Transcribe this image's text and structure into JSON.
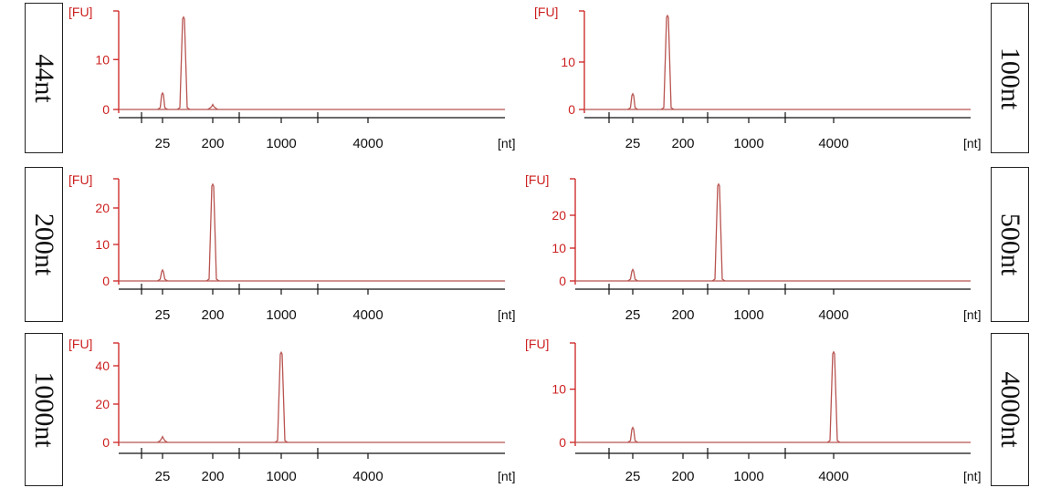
{
  "colors": {
    "trace": "#b85450",
    "axis": "#cc1f1f",
    "xaxis": "#111111"
  },
  "chart_data": [
    {
      "type": "line",
      "sample_label": "44nt",
      "ylabel": "[FU]",
      "xlabel": "[nt]",
      "y_ticks": [
        0,
        10
      ],
      "ylim": [
        0,
        19
      ],
      "x_tick_labels": [
        "25",
        "200",
        "1000",
        "4000"
      ],
      "x_ticks_unlabeled": 3,
      "peaks": [
        {
          "at": "25",
          "height": 3.3
        },
        {
          "at": "44",
          "height": 18.5
        },
        {
          "at": "200",
          "height": 1.0
        }
      ]
    },
    {
      "type": "line",
      "sample_label": "100nt",
      "ylabel": "[FU]",
      "xlabel": "[nt]",
      "y_ticks": [
        0,
        10
      ],
      "ylim": [
        0,
        20
      ],
      "x_tick_labels": [
        "25",
        "200",
        "1000",
        "4000"
      ],
      "x_ticks_unlabeled": 3,
      "peaks": [
        {
          "at": "25",
          "height": 3.3
        },
        {
          "at": "100",
          "height": 19.8
        }
      ]
    },
    {
      "type": "line",
      "sample_label": "200nt",
      "ylabel": "[FU]",
      "xlabel": "[nt]",
      "y_ticks": [
        0,
        10,
        20
      ],
      "ylim": [
        0,
        27
      ],
      "x_tick_labels": [
        "25",
        "200",
        "1000",
        "4000"
      ],
      "x_ticks_unlabeled": 3,
      "peaks": [
        {
          "at": "25",
          "height": 3.0
        },
        {
          "at": "200",
          "height": 26.5
        }
      ]
    },
    {
      "type": "line",
      "sample_label": "500nt",
      "ylabel": "[FU]",
      "xlabel": "[nt]",
      "y_ticks": [
        0,
        10,
        20
      ],
      "ylim": [
        0,
        30
      ],
      "x_tick_labels": [
        "25",
        "200",
        "1000",
        "4000"
      ],
      "x_ticks_unlabeled": 3,
      "peaks": [
        {
          "at": "25",
          "height": 3.5
        },
        {
          "at": "500",
          "height": 29.5
        }
      ]
    },
    {
      "type": "line",
      "sample_label": "1000nt",
      "ylabel": "[FU]",
      "xlabel": "[nt]",
      "y_ticks": [
        0,
        20,
        40
      ],
      "ylim": [
        0,
        50
      ],
      "x_tick_labels": [
        "25",
        "200",
        "1000",
        "4000"
      ],
      "x_ticks_unlabeled": 3,
      "peaks": [
        {
          "at": "25",
          "height": 3.0
        },
        {
          "at": "1000",
          "height": 47
        }
      ]
    },
    {
      "type": "line",
      "sample_label": "4000nt",
      "ylabel": "[FU]",
      "xlabel": "[nt]",
      "y_ticks": [
        0,
        10
      ],
      "ylim": [
        0,
        18
      ],
      "x_tick_labels": [
        "25",
        "200",
        "1000",
        "4000"
      ],
      "x_ticks_unlabeled": 3,
      "peaks": [
        {
          "at": "25",
          "height": 2.8
        },
        {
          "at": "4000",
          "height": 17
        }
      ]
    }
  ]
}
